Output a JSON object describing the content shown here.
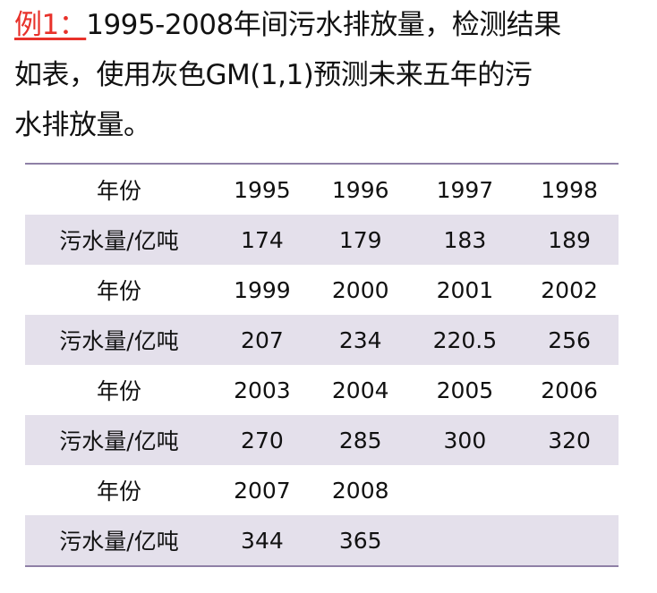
{
  "problem": {
    "label": "例1：",
    "line1": "1995-2008年间污水排放量，检测结果",
    "line2": "如表，使用灰色GM(1,1)预测未来五年的污",
    "line3": "水排放量。"
  },
  "table": {
    "rows": [
      {
        "kind": "year",
        "header": "年份",
        "cells": [
          "1995",
          "1996",
          "1997",
          "1998"
        ]
      },
      {
        "kind": "value",
        "header": "污水量/亿吨",
        "cells": [
          "174",
          "179",
          "183",
          "189"
        ]
      },
      {
        "kind": "year",
        "header": "年份",
        "cells": [
          "1999",
          "2000",
          "2001",
          "2002"
        ]
      },
      {
        "kind": "value",
        "header": "污水量/亿吨",
        "cells": [
          "207",
          "234",
          "220.5",
          "256"
        ]
      },
      {
        "kind": "year",
        "header": "年份",
        "cells": [
          "2003",
          "2004",
          "2005",
          "2006"
        ]
      },
      {
        "kind": "value",
        "header": "污水量/亿吨",
        "cells": [
          "270",
          "285",
          "300",
          "320"
        ]
      },
      {
        "kind": "year",
        "header": "年份",
        "cells": [
          "2007",
          "2008",
          "",
          ""
        ]
      },
      {
        "kind": "value",
        "header": "污水量/亿吨",
        "cells": [
          "344",
          "365",
          "",
          ""
        ]
      }
    ]
  }
}
